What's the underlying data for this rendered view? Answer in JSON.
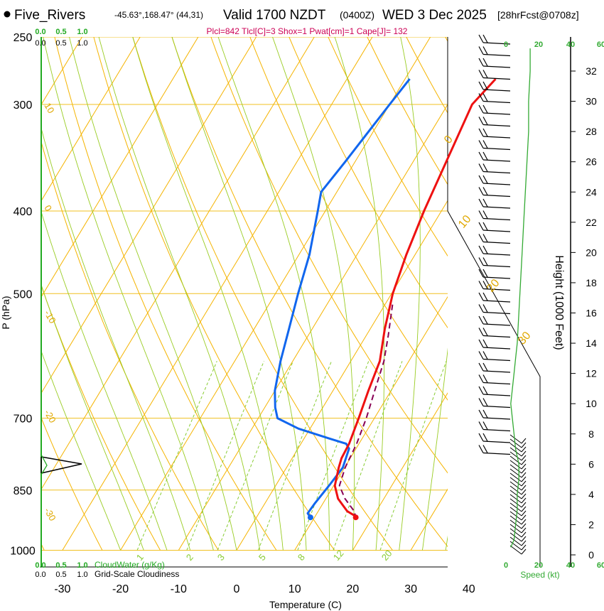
{
  "header": {
    "station": "Five_Rivers",
    "location": "-45.63°,168.47° (44,31)",
    "valid": "Valid 1700 NZDT",
    "zulu": "(0400Z)",
    "date": "WED 3 Dec 2025",
    "forecast": "[28hrFcst@0708z]",
    "indices": "Plcl=842 Tlcl[C]=3 Shox=1 Pwat[cm]=1 Cape[J]= 132"
  },
  "colors": {
    "temperature": "#ee1111",
    "dewpoint": "#1166ee",
    "parcel": "#880055",
    "isotherm": "#f5b400",
    "dry_adiabat": "#f5b400",
    "moist_adiabat": "#99cc22",
    "mixing_ratio": "#88cc33",
    "speed": "#33aa33",
    "cloud": "#22aa22"
  },
  "chart_data": {
    "type": "skew-t",
    "xlabel": "Temperature (C)",
    "ylabel": "P (hPa)",
    "height_label": "Height (1000 Feet)",
    "temp_ticks": [
      "-30",
      "-20",
      "-10",
      "0",
      "10",
      "20",
      "30",
      "40"
    ],
    "temp_tick_values": [
      -30,
      -20,
      -10,
      0,
      10,
      20,
      30,
      40
    ],
    "pressure_ticks": [
      "250",
      "300",
      "400",
      "500",
      "700",
      "850",
      "1000"
    ],
    "pressure_tick_values": [
      250,
      300,
      400,
      500,
      700,
      850,
      1000
    ],
    "height_ticks": [
      "0",
      "2",
      "4",
      "6",
      "8",
      "10",
      "12",
      "14",
      "16",
      "18",
      "20",
      "22",
      "24",
      "26",
      "28",
      "30",
      "32"
    ],
    "height_tick_values": [
      0,
      2,
      4,
      6,
      8,
      10,
      12,
      14,
      16,
      18,
      20,
      22,
      24,
      26,
      28,
      30,
      32
    ],
    "top_axis_1": [
      "0.0",
      "0.5",
      "1.0"
    ],
    "top_axis_2": [
      "0.0",
      "0.5",
      "1.0"
    ],
    "bottom_axis_1": [
      "0.0",
      "0.5",
      "1.0"
    ],
    "bottom_axis_2": [
      "0.0",
      "0.5",
      "1.0"
    ],
    "cloudwater_label": "CloudWater (g/Kg)",
    "cloudiness_label": "Grid-Scale Cloudiness",
    "speed_ticks": [
      "0",
      "20",
      "40",
      "60"
    ],
    "speed_label": "Speed (kt)",
    "isotherm_labels": [
      "10",
      "0",
      "-10",
      "-20",
      "-30"
    ],
    "dry_adiabat_labels": [
      "0",
      "10",
      "20",
      "30"
    ],
    "mixing_ratio_labels": [
      "1",
      "2",
      "3",
      "5",
      "8",
      "12",
      "20"
    ],
    "temperature_profile": [
      [
        280,
        -4.4
      ],
      [
        300,
        -5.8
      ],
      [
        350,
        -4.3
      ],
      [
        400,
        -3.0
      ],
      [
        450,
        -1.5
      ],
      [
        500,
        0.2
      ],
      [
        550,
        2.5
      ],
      [
        600,
        5.0
      ],
      [
        650,
        6.1
      ],
      [
        700,
        7.3
      ],
      [
        750,
        8.3
      ],
      [
        780,
        8.5
      ],
      [
        800,
        9.0
      ],
      [
        840,
        10.2
      ],
      [
        870,
        12.1
      ],
      [
        900,
        15.0
      ],
      [
        910,
        16.6
      ],
      [
        915,
        17.1
      ]
    ],
    "dewpoint_profile": [
      [
        280,
        -19.2
      ],
      [
        300,
        -20.0
      ],
      [
        350,
        -21.7
      ],
      [
        380,
        -22.7
      ],
      [
        400,
        -21.3
      ],
      [
        450,
        -18.2
      ],
      [
        500,
        -16.1
      ],
      [
        550,
        -14.0
      ],
      [
        600,
        -12.1
      ],
      [
        650,
        -10.0
      ],
      [
        680,
        -8.2
      ],
      [
        700,
        -6.7
      ],
      [
        720,
        -2.0
      ],
      [
        740,
        4.5
      ],
      [
        750,
        7.8
      ],
      [
        760,
        8.8
      ],
      [
        800,
        9.7
      ],
      [
        840,
        9.2
      ],
      [
        880,
        8.6
      ],
      [
        905,
        8.4
      ],
      [
        915,
        9.3
      ]
    ],
    "parcel_profile": [
      [
        515,
        1.3
      ],
      [
        560,
        3.8
      ],
      [
        600,
        5.7
      ],
      [
        650,
        7.2
      ],
      [
        700,
        8.6
      ],
      [
        750,
        9.6
      ],
      [
        800,
        10.1
      ],
      [
        840,
        11.0
      ],
      [
        870,
        13.3
      ],
      [
        900,
        16.2
      ],
      [
        915,
        17.1
      ]
    ],
    "surface_temperature": 17.1,
    "surface_dewpoint": 9.3,
    "surface_pressure": 915,
    "speed_profile_kt": [
      [
        0.5,
        3
      ],
      [
        1,
        5
      ],
      [
        2,
        6
      ],
      [
        3,
        7
      ],
      [
        4,
        7
      ],
      [
        5,
        8
      ],
      [
        6,
        8
      ],
      [
        7,
        6
      ],
      [
        8,
        5
      ],
      [
        9,
        4
      ],
      [
        10,
        3
      ],
      [
        11,
        4
      ],
      [
        12,
        5
      ],
      [
        13,
        6
      ],
      [
        14,
        7
      ],
      [
        16,
        8
      ],
      [
        18,
        9
      ],
      [
        20,
        10
      ],
      [
        22,
        11
      ],
      [
        24,
        12
      ],
      [
        26,
        13
      ],
      [
        28,
        14
      ],
      [
        30,
        14
      ],
      [
        32,
        15
      ],
      [
        33.5,
        15
      ]
    ],
    "cloudiness_profile": [
      [
        6.5,
        0.0
      ],
      [
        7.0,
        0.9
      ],
      [
        7.4,
        0.0
      ]
    ]
  }
}
